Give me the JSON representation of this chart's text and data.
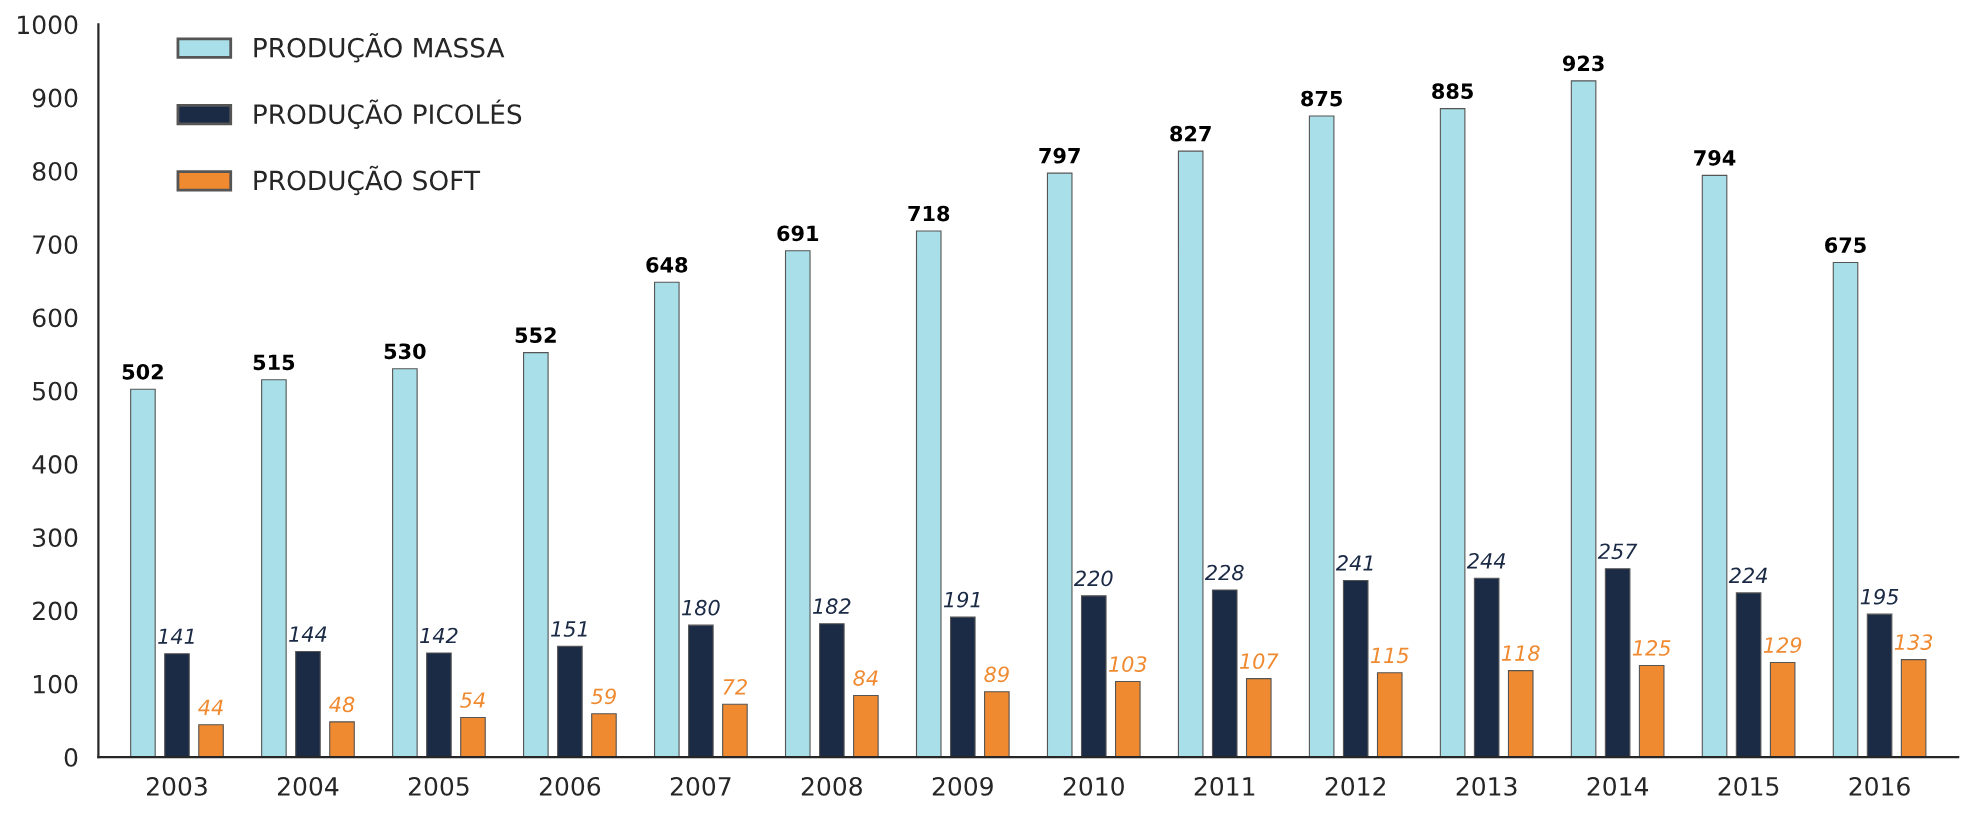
{
  "chart_data": {
    "type": "bar",
    "categories": [
      "2003",
      "2004",
      "2005",
      "2006",
      "2007",
      "2008",
      "2009",
      "2010",
      "2011",
      "2012",
      "2013",
      "2014",
      "2015",
      "2016"
    ],
    "series": [
      {
        "name": "PRODUÇÃO MASSA",
        "color": "#a9dfe8",
        "values": [
          502,
          515,
          530,
          552,
          648,
          691,
          718,
          797,
          827,
          875,
          885,
          923,
          794,
          675
        ]
      },
      {
        "name": "PRODUÇÃO PICOLÉS",
        "color": "#1b2a45",
        "values": [
          141,
          144,
          142,
          151,
          180,
          182,
          191,
          220,
          228,
          241,
          244,
          257,
          224,
          195
        ]
      },
      {
        "name": "PRODUÇÃO SOFT",
        "color": "#f08a30",
        "values": [
          44,
          48,
          54,
          59,
          72,
          84,
          89,
          103,
          107,
          115,
          118,
          125,
          129,
          133
        ]
      }
    ],
    "ylim": [
      0,
      1000
    ],
    "yticks": [
      0,
      100,
      200,
      300,
      400,
      500,
      600,
      700,
      800,
      900,
      1000
    ],
    "data_labels": true,
    "legend": "top left",
    "grid": false
  }
}
